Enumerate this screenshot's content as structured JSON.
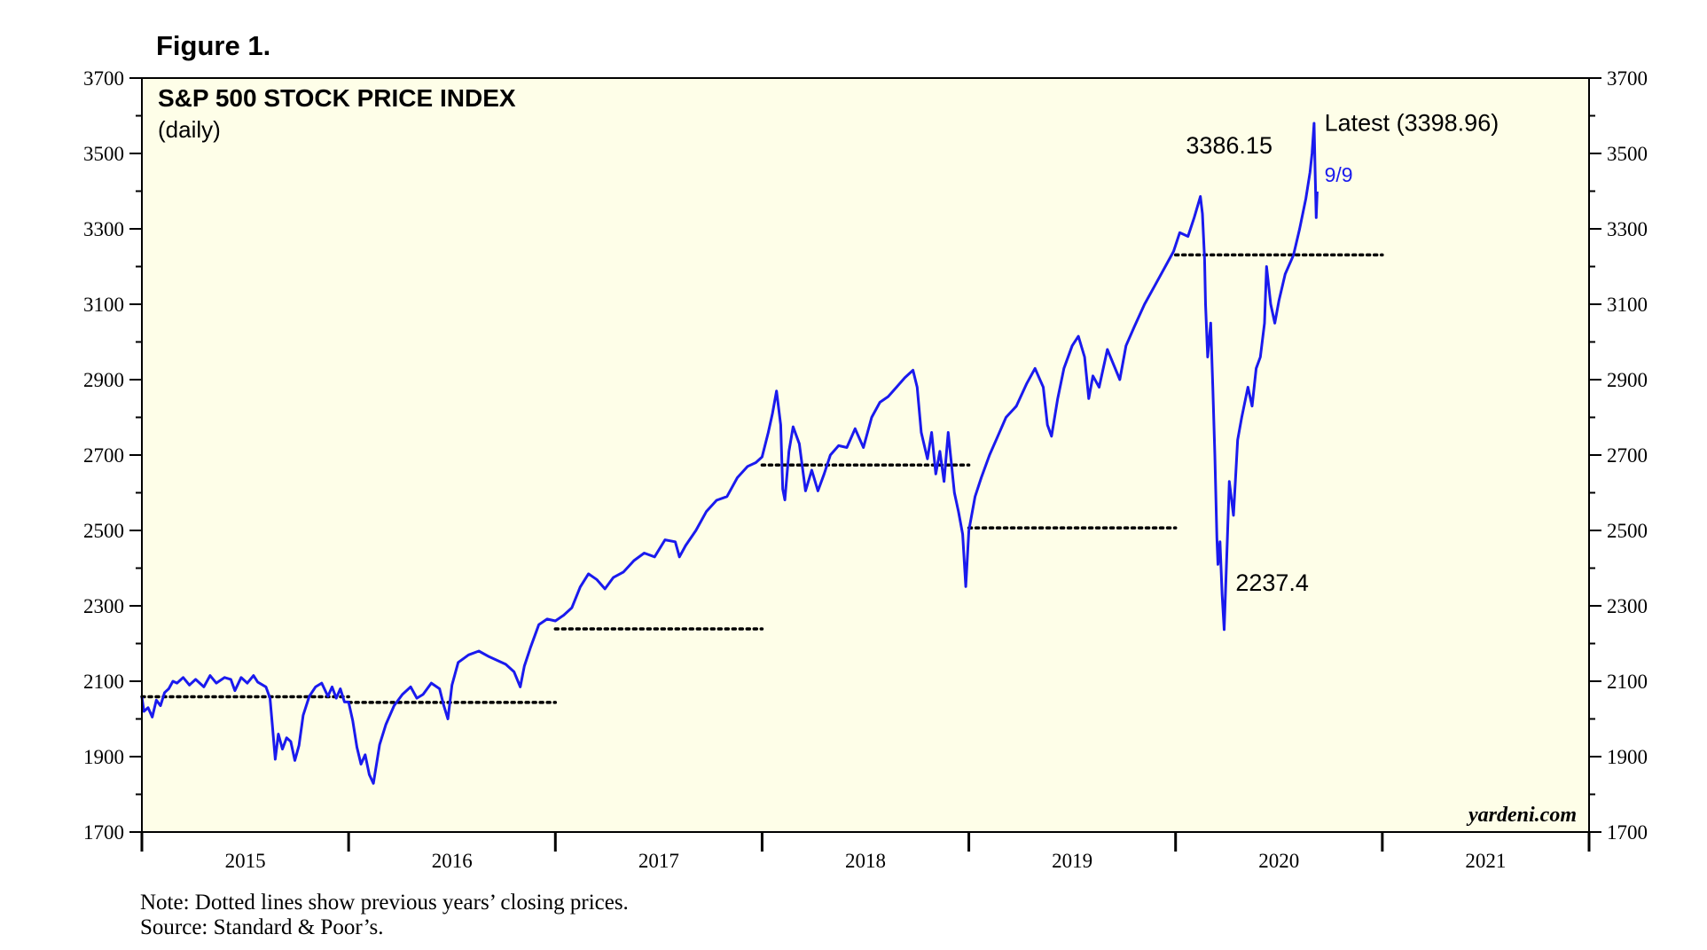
{
  "figure_label": "Figure 1.",
  "note": "Note: Dotted lines show previous years’ closing prices.",
  "source": "Source: Standard & Poor’s.",
  "colors": {
    "plot_background": "#fefee8",
    "series_line": "#1a1aee",
    "reference_lines": "#000000",
    "frame": "#000000"
  },
  "chart_data": {
    "type": "line",
    "title": "S&P 500 STOCK PRICE INDEX",
    "subtitle": "(daily)",
    "watermark": "yardeni.com",
    "ylim": [
      1700,
      3700
    ],
    "yticks": [
      1700,
      1900,
      2100,
      2300,
      2500,
      2700,
      2900,
      3100,
      3300,
      3500,
      3700
    ],
    "x_range": [
      2015.0,
      2022.0
    ],
    "x_labels": [
      "2015",
      "2016",
      "2017",
      "2018",
      "2019",
      "2020",
      "2021"
    ],
    "grid": false,
    "series": [
      {
        "values_xy": [
          [
            2015.0,
            2058
          ],
          [
            2015.01,
            2020
          ],
          [
            2015.03,
            2030
          ],
          [
            2015.05,
            2005
          ],
          [
            2015.07,
            2050
          ],
          [
            2015.09,
            2035
          ],
          [
            2015.11,
            2070
          ],
          [
            2015.13,
            2080
          ],
          [
            2015.15,
            2100
          ],
          [
            2015.17,
            2095
          ],
          [
            2015.2,
            2110
          ],
          [
            2015.23,
            2090
          ],
          [
            2015.26,
            2105
          ],
          [
            2015.3,
            2085
          ],
          [
            2015.33,
            2115
          ],
          [
            2015.36,
            2095
          ],
          [
            2015.4,
            2110
          ],
          [
            2015.43,
            2105
          ],
          [
            2015.45,
            2075
          ],
          [
            2015.48,
            2110
          ],
          [
            2015.51,
            2095
          ],
          [
            2015.54,
            2115
          ],
          [
            2015.56,
            2098
          ],
          [
            2015.6,
            2085
          ],
          [
            2015.62,
            2055
          ],
          [
            2015.63,
            1990
          ],
          [
            2015.645,
            1893
          ],
          [
            2015.66,
            1960
          ],
          [
            2015.68,
            1920
          ],
          [
            2015.7,
            1950
          ],
          [
            2015.72,
            1940
          ],
          [
            2015.74,
            1890
          ],
          [
            2015.76,
            1930
          ],
          [
            2015.78,
            2010
          ],
          [
            2015.81,
            2060
          ],
          [
            2015.84,
            2085
          ],
          [
            2015.87,
            2095
          ],
          [
            2015.9,
            2060
          ],
          [
            2015.92,
            2085
          ],
          [
            2015.94,
            2055
          ],
          [
            2015.96,
            2080
          ],
          [
            2015.98,
            2045
          ],
          [
            2016.0,
            2045
          ],
          [
            2016.02,
            1995
          ],
          [
            2016.04,
            1925
          ],
          [
            2016.06,
            1880
          ],
          [
            2016.08,
            1905
          ],
          [
            2016.1,
            1852
          ],
          [
            2016.12,
            1829
          ],
          [
            2016.15,
            1932
          ],
          [
            2016.18,
            1985
          ],
          [
            2016.22,
            2035
          ],
          [
            2016.26,
            2065
          ],
          [
            2016.3,
            2085
          ],
          [
            2016.33,
            2055
          ],
          [
            2016.36,
            2065
          ],
          [
            2016.4,
            2095
          ],
          [
            2016.44,
            2080
          ],
          [
            2016.46,
            2036
          ],
          [
            2016.48,
            2000
          ],
          [
            2016.5,
            2090
          ],
          [
            2016.53,
            2150
          ],
          [
            2016.58,
            2170
          ],
          [
            2016.63,
            2180
          ],
          [
            2016.68,
            2165
          ],
          [
            2016.72,
            2155
          ],
          [
            2016.76,
            2145
          ],
          [
            2016.8,
            2125
          ],
          [
            2016.83,
            2085
          ],
          [
            2016.85,
            2140
          ],
          [
            2016.88,
            2190
          ],
          [
            2016.92,
            2250
          ],
          [
            2016.96,
            2265
          ],
          [
            2017.0,
            2260
          ],
          [
            2017.04,
            2275
          ],
          [
            2017.08,
            2295
          ],
          [
            2017.12,
            2350
          ],
          [
            2017.16,
            2385
          ],
          [
            2017.2,
            2370
          ],
          [
            2017.24,
            2345
          ],
          [
            2017.28,
            2375
          ],
          [
            2017.33,
            2390
          ],
          [
            2017.38,
            2420
          ],
          [
            2017.43,
            2440
          ],
          [
            2017.48,
            2430
          ],
          [
            2017.53,
            2475
          ],
          [
            2017.58,
            2470
          ],
          [
            2017.6,
            2430
          ],
          [
            2017.63,
            2460
          ],
          [
            2017.68,
            2500
          ],
          [
            2017.73,
            2550
          ],
          [
            2017.78,
            2580
          ],
          [
            2017.83,
            2590
          ],
          [
            2017.88,
            2640
          ],
          [
            2017.93,
            2670
          ],
          [
            2017.97,
            2680
          ],
          [
            2018.0,
            2695
          ],
          [
            2018.03,
            2760
          ],
          [
            2018.05,
            2810
          ],
          [
            2018.07,
            2870
          ],
          [
            2018.09,
            2780
          ],
          [
            2018.1,
            2610
          ],
          [
            2018.11,
            2581
          ],
          [
            2018.13,
            2710
          ],
          [
            2018.15,
            2775
          ],
          [
            2018.18,
            2730
          ],
          [
            2018.21,
            2605
          ],
          [
            2018.24,
            2660
          ],
          [
            2018.27,
            2605
          ],
          [
            2018.3,
            2650
          ],
          [
            2018.33,
            2700
          ],
          [
            2018.37,
            2725
          ],
          [
            2018.41,
            2720
          ],
          [
            2018.45,
            2770
          ],
          [
            2018.49,
            2720
          ],
          [
            2018.53,
            2800
          ],
          [
            2018.57,
            2840
          ],
          [
            2018.61,
            2855
          ],
          [
            2018.65,
            2880
          ],
          [
            2018.69,
            2905
          ],
          [
            2018.73,
            2925
          ],
          [
            2018.75,
            2880
          ],
          [
            2018.77,
            2760
          ],
          [
            2018.8,
            2690
          ],
          [
            2018.82,
            2760
          ],
          [
            2018.84,
            2650
          ],
          [
            2018.86,
            2710
          ],
          [
            2018.88,
            2630
          ],
          [
            2018.9,
            2760
          ],
          [
            2018.93,
            2600
          ],
          [
            2018.95,
            2550
          ],
          [
            2018.97,
            2490
          ],
          [
            2018.985,
            2351
          ],
          [
            2019.0,
            2500
          ],
          [
            2019.03,
            2590
          ],
          [
            2019.06,
            2640
          ],
          [
            2019.1,
            2700
          ],
          [
            2019.14,
            2750
          ],
          [
            2019.18,
            2800
          ],
          [
            2019.23,
            2830
          ],
          [
            2019.28,
            2890
          ],
          [
            2019.32,
            2930
          ],
          [
            2019.36,
            2880
          ],
          [
            2019.38,
            2780
          ],
          [
            2019.4,
            2750
          ],
          [
            2019.43,
            2850
          ],
          [
            2019.46,
            2930
          ],
          [
            2019.5,
            2990
          ],
          [
            2019.53,
            3015
          ],
          [
            2019.56,
            2960
          ],
          [
            2019.58,
            2850
          ],
          [
            2019.6,
            2910
          ],
          [
            2019.63,
            2880
          ],
          [
            2019.67,
            2980
          ],
          [
            2019.7,
            2940
          ],
          [
            2019.73,
            2900
          ],
          [
            2019.76,
            2990
          ],
          [
            2019.8,
            3040
          ],
          [
            2019.85,
            3100
          ],
          [
            2019.9,
            3150
          ],
          [
            2019.95,
            3200
          ],
          [
            2019.99,
            3240
          ],
          [
            2020.02,
            3290
          ],
          [
            2020.06,
            3280
          ],
          [
            2020.09,
            3330
          ],
          [
            2020.12,
            3386
          ],
          [
            2020.13,
            3340
          ],
          [
            2020.14,
            3220
          ],
          [
            2020.145,
            3100
          ],
          [
            2020.155,
            2960
          ],
          [
            2020.17,
            3050
          ],
          [
            2020.18,
            2880
          ],
          [
            2020.19,
            2700
          ],
          [
            2020.2,
            2480
          ],
          [
            2020.205,
            2410
          ],
          [
            2020.215,
            2470
          ],
          [
            2020.225,
            2330
          ],
          [
            2020.235,
            2237
          ],
          [
            2020.25,
            2470
          ],
          [
            2020.26,
            2630
          ],
          [
            2020.28,
            2540
          ],
          [
            2020.3,
            2740
          ],
          [
            2020.32,
            2800
          ],
          [
            2020.35,
            2880
          ],
          [
            2020.37,
            2830
          ],
          [
            2020.39,
            2930
          ],
          [
            2020.41,
            2960
          ],
          [
            2020.43,
            3050
          ],
          [
            2020.44,
            3200
          ],
          [
            2020.46,
            3100
          ],
          [
            2020.48,
            3050
          ],
          [
            2020.5,
            3110
          ],
          [
            2020.53,
            3180
          ],
          [
            2020.57,
            3230
          ],
          [
            2020.6,
            3300
          ],
          [
            2020.63,
            3380
          ],
          [
            2020.65,
            3450
          ],
          [
            2020.66,
            3500
          ],
          [
            2020.67,
            3580
          ],
          [
            2020.675,
            3450
          ],
          [
            2020.68,
            3330
          ],
          [
            2020.685,
            3399
          ]
        ]
      }
    ],
    "reference_lines": [
      {
        "value": 2058.9,
        "x_from": 2015.0,
        "x_to": 2016.0
      },
      {
        "value": 2043.94,
        "x_from": 2016.0,
        "x_to": 2017.0
      },
      {
        "value": 2238.83,
        "x_from": 2017.0,
        "x_to": 2018.0
      },
      {
        "value": 2673.61,
        "x_from": 2018.0,
        "x_to": 2019.0
      },
      {
        "value": 2506.85,
        "x_from": 2019.0,
        "x_to": 2020.0
      },
      {
        "value": 3230.78,
        "x_from": 2020.0,
        "x_to": 2021.0
      }
    ],
    "annotations": [
      {
        "text": "Latest (3398.96)",
        "x": 2020.72,
        "y": 3560,
        "color": "#000000"
      },
      {
        "text": "3386.15",
        "x": 2020.05,
        "y": 3500,
        "color": "#000000"
      },
      {
        "text": "9/9",
        "x": 2020.72,
        "y": 3425,
        "color": "#1a1aee"
      },
      {
        "text": "2237.4",
        "x": 2020.29,
        "y": 2340,
        "color": "#000000"
      }
    ]
  }
}
